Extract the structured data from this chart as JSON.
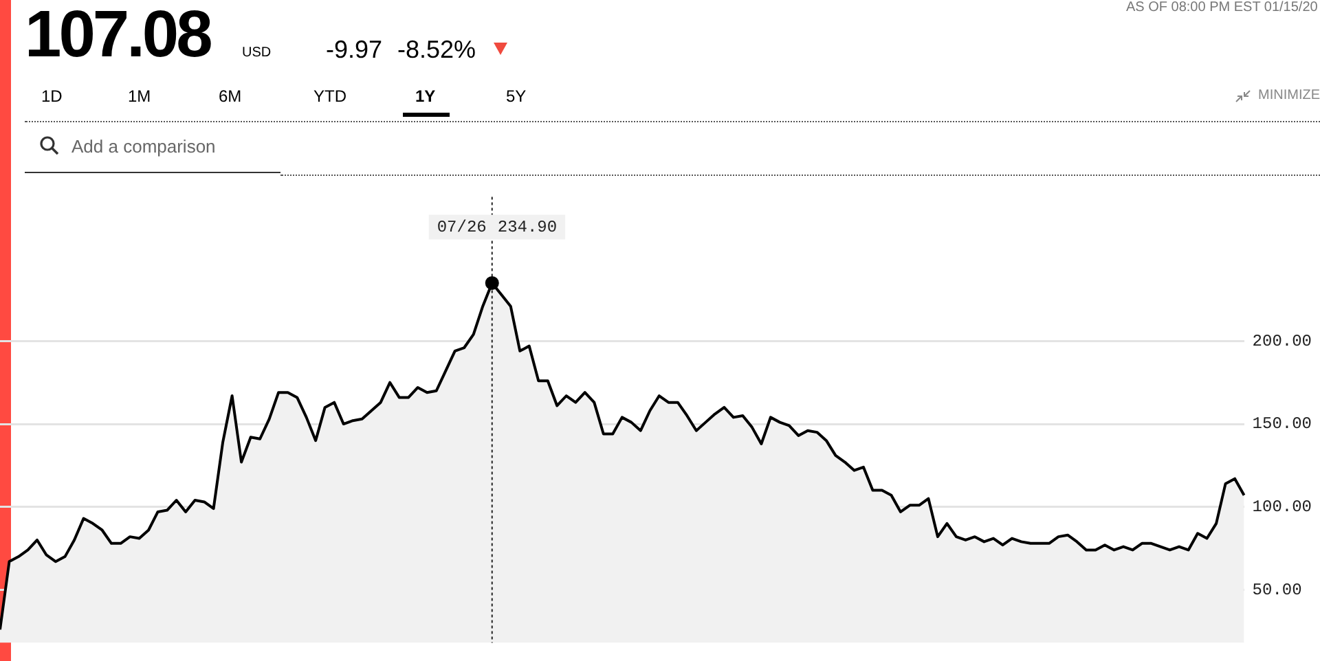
{
  "chart_data": {
    "type": "area",
    "categories": [
      null,
      null,
      null,
      null,
      null,
      null,
      null,
      null,
      null,
      null,
      null,
      null,
      null,
      null,
      null,
      null,
      null,
      null,
      null,
      null,
      null,
      null,
      null,
      null,
      null,
      null,
      null,
      null,
      null,
      null,
      null,
      null,
      null,
      null,
      null,
      null,
      null,
      null,
      null,
      null,
      null,
      null,
      null,
      null,
      null,
      null,
      null,
      null,
      null,
      null,
      null,
      null,
      null,
      null,
      null,
      null,
      null,
      null,
      null,
      null,
      null,
      null,
      null,
      null,
      null,
      null,
      null,
      null,
      null,
      null,
      null,
      null,
      null,
      null,
      null,
      null,
      null,
      null,
      null,
      null,
      null,
      null,
      null,
      null,
      null,
      null,
      null,
      null,
      null,
      null,
      null,
      null,
      null,
      null,
      null,
      null,
      null,
      null,
      null,
      null,
      null,
      null,
      null,
      null,
      null,
      null,
      null,
      null,
      null,
      null,
      null,
      null,
      null,
      null,
      null,
      null,
      null,
      null,
      null,
      null,
      null,
      null,
      null,
      null,
      null,
      null,
      null,
      null,
      null,
      null,
      null,
      null,
      null,
      null,
      null
    ],
    "series": [
      {
        "color": "#000000",
        "values": [
          26,
          67,
          70,
          74,
          80,
          71,
          67,
          70,
          80,
          93,
          90,
          86,
          78,
          78,
          82,
          81,
          86,
          97,
          98,
          104,
          97,
          104,
          103,
          99,
          139,
          167,
          127,
          142,
          141,
          153,
          169,
          169,
          166,
          154,
          140,
          160,
          163,
          150,
          152,
          153,
          158,
          163,
          175,
          166,
          166,
          172,
          169,
          170,
          182,
          194,
          196,
          204,
          221,
          235,
          228,
          221,
          194,
          197,
          176,
          176,
          161,
          167,
          163,
          169,
          163,
          144,
          144,
          154,
          151,
          146,
          158,
          167,
          163,
          163,
          155,
          146,
          151,
          156,
          160,
          154,
          155,
          148,
          138,
          154,
          151,
          149,
          143,
          146,
          145,
          140,
          131,
          127,
          122,
          124,
          110,
          110,
          107,
          97,
          101,
          101,
          105,
          82,
          90,
          82,
          80,
          82,
          79,
          81,
          77,
          81,
          79,
          78,
          78,
          78,
          82,
          83,
          79,
          74,
          74,
          77,
          74,
          76,
          74,
          78,
          78,
          76,
          74,
          76,
          74,
          84,
          81,
          90,
          114,
          117,
          107
        ]
      }
    ],
    "ylim": [
      18,
      287
    ],
    "yticks": [
      {
        "value": 50,
        "label": "50.00"
      },
      {
        "value": 100,
        "label": "100.00"
      },
      {
        "value": 150,
        "label": "150.00"
      },
      {
        "value": 200,
        "label": "200.00"
      }
    ],
    "grid": "y",
    "tick_labels": "y",
    "legend": false,
    "annotations": [
      "107.08",
      "USD",
      "-9.97",
      "-8.52%",
      "AS OF 08:00 PM EST 01/15/20",
      "1D",
      "1M",
      "6M",
      "YTD",
      "1Y",
      "5Y",
      "MINIMIZE",
      "Add a comparison",
      "07/26",
      "234.90"
    ]
  }
}
